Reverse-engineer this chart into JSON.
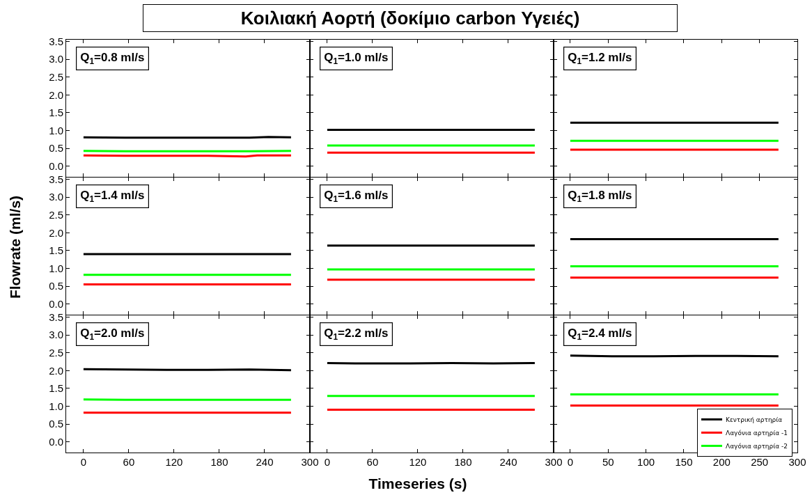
{
  "chart_data": [
    {
      "type": "line",
      "title": "Κοιλιακή Αορτή  (δοκίμιο carbon Υγειές)",
      "annotations": [
        "Q$_{1}$=0.8 ml/s"
      ],
      "tick_labels": "y",
      "xlim": [
        -23,
        300
      ],
      "xticks": [
        0,
        60,
        120,
        180,
        240,
        300
      ],
      "ylim": [
        -0.3,
        3.55
      ],
      "yticks": [
        {
          "value": 0,
          "label": "0.0"
        },
        0.5,
        {
          "value": 1,
          "label": "1.0"
        },
        1.5,
        {
          "value": 2,
          "label": "2.0"
        },
        2.5,
        {
          "value": 3,
          "label": "3.0"
        },
        3.5
      ],
      "series": [
        {
          "color": "#000000",
          "x": [
            0,
            55,
            110,
            165,
            220,
            245,
            275
          ],
          "values": [
            0.81,
            0.8,
            0.8,
            0.8,
            0.8,
            0.82,
            0.81
          ]
        },
        {
          "color": "#ff0000",
          "x": [
            0,
            55,
            110,
            165,
            215,
            230,
            275
          ],
          "values": [
            0.3,
            0.29,
            0.29,
            0.29,
            0.27,
            0.3,
            0.3
          ]
        },
        {
          "color": "#00ff00",
          "x": [
            0,
            55,
            110,
            165,
            220,
            275
          ],
          "values": [
            0.43,
            0.42,
            0.42,
            0.42,
            0.42,
            0.43
          ]
        }
      ]
    },
    {
      "type": "line",
      "annotations": [
        "Q$_{1}$=1.0 ml/s"
      ],
      "tick_labels": false,
      "xlim": [
        -23,
        300
      ],
      "xticks": [
        0,
        60,
        120,
        180,
        240,
        300
      ],
      "ylim": [
        -0.3,
        3.55
      ],
      "yticks": [
        0,
        0.5,
        1,
        1.5,
        2,
        2.5,
        3,
        3.5
      ],
      "series": [
        {
          "color": "#000000",
          "x": [
            0,
            55,
            110,
            165,
            220,
            275
          ],
          "values": [
            1.02,
            1.02,
            1.02,
            1.02,
            1.02,
            1.02
          ]
        },
        {
          "color": "#ff0000",
          "x": [
            0,
            55,
            110,
            165,
            220,
            275
          ],
          "values": [
            0.38,
            0.38,
            0.38,
            0.38,
            0.38,
            0.38
          ]
        },
        {
          "color": "#00ff00",
          "x": [
            0,
            55,
            110,
            165,
            220,
            275
          ],
          "values": [
            0.58,
            0.58,
            0.58,
            0.58,
            0.58,
            0.58
          ]
        }
      ]
    },
    {
      "type": "line",
      "annotations": [
        "Q$_{1}$=1.2 ml/s"
      ],
      "tick_labels": false,
      "xlim": [
        -22,
        300
      ],
      "xticks": [
        0,
        50,
        100,
        150,
        200,
        250,
        300
      ],
      "ylim": [
        -0.3,
        3.55
      ],
      "yticks": [
        0,
        0.5,
        1,
        1.5,
        2,
        2.5,
        3,
        3.5
      ],
      "series": [
        {
          "color": "#000000",
          "x": [
            0,
            55,
            110,
            165,
            220,
            275
          ],
          "values": [
            1.22,
            1.22,
            1.22,
            1.22,
            1.22,
            1.22
          ]
        },
        {
          "color": "#ff0000",
          "x": [
            0,
            55,
            110,
            165,
            220,
            275
          ],
          "values": [
            0.46,
            0.46,
            0.46,
            0.46,
            0.46,
            0.46
          ]
        },
        {
          "color": "#00ff00",
          "x": [
            0,
            55,
            110,
            165,
            220,
            275
          ],
          "values": [
            0.71,
            0.71,
            0.71,
            0.71,
            0.71,
            0.71
          ]
        }
      ]
    },
    {
      "type": "line",
      "ylabel": "Flowrate (ml/s)",
      "annotations": [
        "Q$_{1}$=1.4 ml/s"
      ],
      "tick_labels": "y",
      "xlim": [
        -23,
        300
      ],
      "xticks": [
        0,
        60,
        120,
        180,
        240,
        300
      ],
      "ylim": [
        -0.3,
        3.55
      ],
      "yticks": [
        {
          "value": 0,
          "label": "0.0"
        },
        0.5,
        {
          "value": 1,
          "label": "1.0"
        },
        1.5,
        {
          "value": 2,
          "label": "2.0"
        },
        2.5,
        {
          "value": 3,
          "label": "3.0"
        },
        3.5
      ],
      "series": [
        {
          "color": "#000000",
          "x": [
            0,
            55,
            110,
            165,
            220,
            275
          ],
          "values": [
            1.4,
            1.4,
            1.4,
            1.4,
            1.4,
            1.4
          ]
        },
        {
          "color": "#ff0000",
          "x": [
            0,
            55,
            110,
            165,
            220,
            275
          ],
          "values": [
            0.55,
            0.55,
            0.55,
            0.55,
            0.55,
            0.55
          ]
        },
        {
          "color": "#00ff00",
          "x": [
            0,
            55,
            110,
            165,
            220,
            275
          ],
          "values": [
            0.82,
            0.82,
            0.82,
            0.82,
            0.82,
            0.82
          ]
        }
      ]
    },
    {
      "type": "line",
      "annotations": [
        "Q$_{1}$=1.6 ml/s"
      ],
      "tick_labels": false,
      "xlim": [
        -23,
        300
      ],
      "xticks": [
        0,
        60,
        120,
        180,
        240,
        300
      ],
      "ylim": [
        -0.3,
        3.55
      ],
      "yticks": [
        0,
        0.5,
        1,
        1.5,
        2,
        2.5,
        3,
        3.5
      ],
      "series": [
        {
          "color": "#000000",
          "x": [
            0,
            55,
            110,
            165,
            220,
            275
          ],
          "values": [
            1.64,
            1.64,
            1.64,
            1.64,
            1.64,
            1.64
          ]
        },
        {
          "color": "#ff0000",
          "x": [
            0,
            55,
            110,
            165,
            220,
            275
          ],
          "values": [
            0.68,
            0.68,
            0.68,
            0.68,
            0.68,
            0.68
          ]
        },
        {
          "color": "#00ff00",
          "x": [
            0,
            55,
            110,
            165,
            220,
            275
          ],
          "values": [
            0.97,
            0.97,
            0.97,
            0.97,
            0.97,
            0.97
          ]
        }
      ]
    },
    {
      "type": "line",
      "annotations": [
        "Q$_{1}$=1.8 ml/s"
      ],
      "tick_labels": false,
      "xlim": [
        -22,
        300
      ],
      "xticks": [
        0,
        50,
        100,
        150,
        200,
        250,
        300
      ],
      "ylim": [
        -0.3,
        3.55
      ],
      "yticks": [
        0,
        0.5,
        1,
        1.5,
        2,
        2.5,
        3,
        3.5
      ],
      "series": [
        {
          "color": "#000000",
          "x": [
            0,
            55,
            110,
            165,
            220,
            275
          ],
          "values": [
            1.82,
            1.82,
            1.82,
            1.82,
            1.82,
            1.82
          ]
        },
        {
          "color": "#ff0000",
          "x": [
            0,
            55,
            110,
            165,
            220,
            275
          ],
          "values": [
            0.74,
            0.74,
            0.74,
            0.74,
            0.74,
            0.74
          ]
        },
        {
          "color": "#00ff00",
          "x": [
            0,
            55,
            110,
            165,
            220,
            275
          ],
          "values": [
            1.06,
            1.06,
            1.06,
            1.06,
            1.06,
            1.06
          ]
        }
      ]
    },
    {
      "type": "line",
      "annotations": [
        "Q$_{1}$=2.0 ml/s"
      ],
      "xlim": [
        -23,
        300
      ],
      "xticks": [
        0,
        60,
        120,
        180,
        240,
        300
      ],
      "ylim": [
        -0.3,
        3.55
      ],
      "yticks": [
        {
          "value": 0,
          "label": "0.0"
        },
        0.5,
        {
          "value": 1,
          "label": "1.0"
        },
        1.5,
        {
          "value": 2,
          "label": "2.0"
        },
        2.5,
        {
          "value": 3,
          "label": "3.0"
        },
        3.5
      ],
      "series": [
        {
          "color": "#000000",
          "x": [
            0,
            55,
            110,
            165,
            220,
            275
          ],
          "values": [
            2.04,
            2.03,
            2.02,
            2.02,
            2.03,
            2.01
          ]
        },
        {
          "color": "#ff0000",
          "x": [
            0,
            55,
            110,
            165,
            220,
            275
          ],
          "values": [
            0.82,
            0.82,
            0.82,
            0.82,
            0.82,
            0.82
          ]
        },
        {
          "color": "#00ff00",
          "x": [
            0,
            55,
            110,
            165,
            220,
            275
          ],
          "values": [
            1.19,
            1.18,
            1.18,
            1.18,
            1.18,
            1.18
          ]
        }
      ]
    },
    {
      "type": "line",
      "xlabel": "Timeseries (s)",
      "annotations": [
        "Q$_{1}$=2.2 ml/s"
      ],
      "tick_labels": "x",
      "xlim": [
        -23,
        300
      ],
      "xticks": [
        0,
        60,
        120,
        180,
        240,
        300
      ],
      "ylim": [
        -0.3,
        3.55
      ],
      "yticks": [
        0,
        0.5,
        1,
        1.5,
        2,
        2.5,
        3,
        3.5
      ],
      "series": [
        {
          "color": "#000000",
          "x": [
            0,
            55,
            110,
            165,
            220,
            275
          ],
          "values": [
            2.21,
            2.2,
            2.2,
            2.21,
            2.2,
            2.21
          ]
        },
        {
          "color": "#ff0000",
          "x": [
            0,
            55,
            110,
            165,
            220,
            275
          ],
          "values": [
            0.9,
            0.9,
            0.9,
            0.9,
            0.9,
            0.9
          ]
        },
        {
          "color": "#00ff00",
          "x": [
            0,
            55,
            110,
            165,
            220,
            275
          ],
          "values": [
            1.29,
            1.29,
            1.29,
            1.29,
            1.29,
            1.29
          ]
        }
      ]
    },
    {
      "type": "line",
      "annotations": [
        "Q$_{1}$=2.4 ml/s"
      ],
      "tick_labels": "x",
      "legend": "bottom right",
      "xlim": [
        -22,
        300
      ],
      "xticks": [
        0,
        50,
        100,
        150,
        200,
        250,
        300
      ],
      "ylim": [
        -0.3,
        3.55
      ],
      "yticks": [
        0,
        0.5,
        1,
        1.5,
        2,
        2.5,
        3,
        3.5
      ],
      "series": [
        {
          "name": "Κεντρική αρτηρία",
          "color": "#000000",
          "x": [
            0,
            55,
            110,
            165,
            220,
            275
          ],
          "values": [
            2.42,
            2.4,
            2.4,
            2.41,
            2.41,
            2.4
          ]
        },
        {
          "name": "Λαγόνια αρτηρία -1",
          "color": "#ff0000",
          "x": [
            0,
            55,
            110,
            165,
            220,
            275
          ],
          "values": [
            1.02,
            1.02,
            1.02,
            1.02,
            1.02,
            1.02
          ]
        },
        {
          "name": "Λαγόνια αρτηρία -2",
          "color": "#00ff00",
          "x": [
            0,
            55,
            110,
            165,
            220,
            275
          ],
          "values": [
            1.33,
            1.33,
            1.33,
            1.33,
            1.33,
            1.33
          ]
        }
      ]
    }
  ]
}
